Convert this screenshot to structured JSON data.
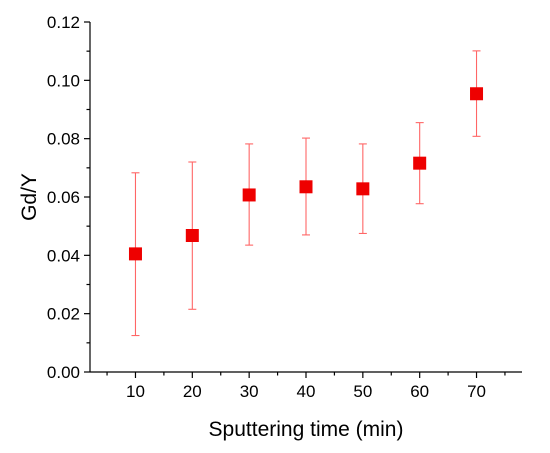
{
  "chart_data": {
    "type": "scatter",
    "title": "",
    "xlabel": "Sputtering time (min)",
    "ylabel": "Gd/Y",
    "xlim": [
      2,
      78
    ],
    "ylim": [
      0.0,
      0.12
    ],
    "x_ticks": [
      10,
      20,
      30,
      40,
      50,
      60,
      70
    ],
    "x_tick_labels": [
      "10",
      "20",
      "30",
      "40",
      "50",
      "60",
      "70"
    ],
    "y_ticks": [
      0.0,
      0.02,
      0.04,
      0.06,
      0.08,
      0.1,
      0.12
    ],
    "y_tick_labels": [
      "0.00",
      "0.02",
      "0.04",
      "0.06",
      "0.08",
      "0.10",
      "0.12"
    ],
    "grid": false,
    "marker": "square",
    "marker_color": "#ee0000",
    "errorbar_color": "#ff6666",
    "series": [
      {
        "x": [
          10,
          20,
          30,
          40,
          50,
          60,
          70
        ],
        "y": [
          0.0405,
          0.0468,
          0.0607,
          0.0635,
          0.0628,
          0.0716,
          0.0954
        ],
        "y_err_low": [
          0.0125,
          0.0215,
          0.0435,
          0.047,
          0.0475,
          0.0577,
          0.0808
        ],
        "y_err_high": [
          0.0683,
          0.072,
          0.0782,
          0.0802,
          0.0782,
          0.0855,
          0.1101
        ]
      }
    ]
  }
}
